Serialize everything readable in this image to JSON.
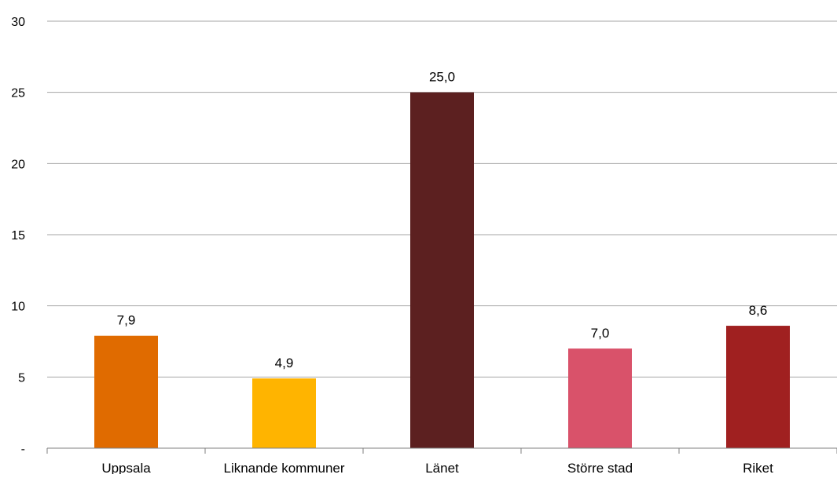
{
  "chart_data": {
    "type": "bar",
    "title": "",
    "xlabel": "",
    "ylabel": "",
    "categories": [
      "Uppsala",
      "Liknande kommuner",
      "Länet",
      "Större stad",
      "Riket"
    ],
    "values": [
      7.9,
      4.9,
      25.0,
      7.0,
      8.6
    ],
    "value_labels": [
      "7,9",
      "4,9",
      "25,0",
      "7,0",
      "8,6"
    ],
    "colors": [
      "#E06B00",
      "#FFB400",
      "#5C2020",
      "#D9526A",
      "#A02020"
    ],
    "ylim": [
      0,
      30
    ],
    "yticks": [
      0,
      5,
      10,
      15,
      20,
      25,
      30
    ],
    "ytick_labels": [
      "-",
      "5",
      "10",
      "15",
      "20",
      "25",
      "30"
    ],
    "grid": true,
    "legend": "none"
  }
}
